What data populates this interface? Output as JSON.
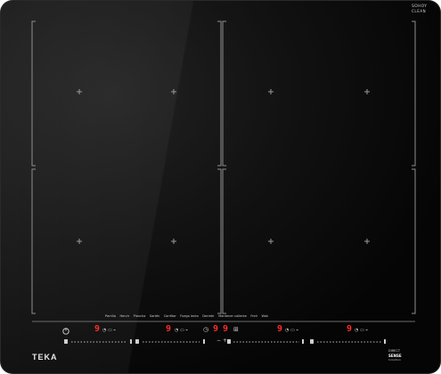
{
  "brand": "TEKA",
  "corner_badge": {
    "line1": "SOHOY",
    "line2": "CLEAN"
  },
  "bottom_badge": {
    "line1": "DIRECT",
    "line2": "SENSE",
    "line3": "Induction"
  },
  "functions": [
    "Parrilla",
    "Hervir",
    "Plancha",
    "Sartén",
    "Confitar",
    "Fuego lento",
    "Derretir",
    "Mantener caliente",
    "Freír",
    "Wok",
    "Hervir"
  ],
  "displays": {
    "zone1": "9",
    "zone2": "9",
    "center1": "9",
    "center2": "9",
    "zone3": "9",
    "zone4": "9"
  },
  "colors": {
    "glass": "#0d0d0d",
    "line": "#9a9a9a",
    "display": "#ff2b2b"
  }
}
